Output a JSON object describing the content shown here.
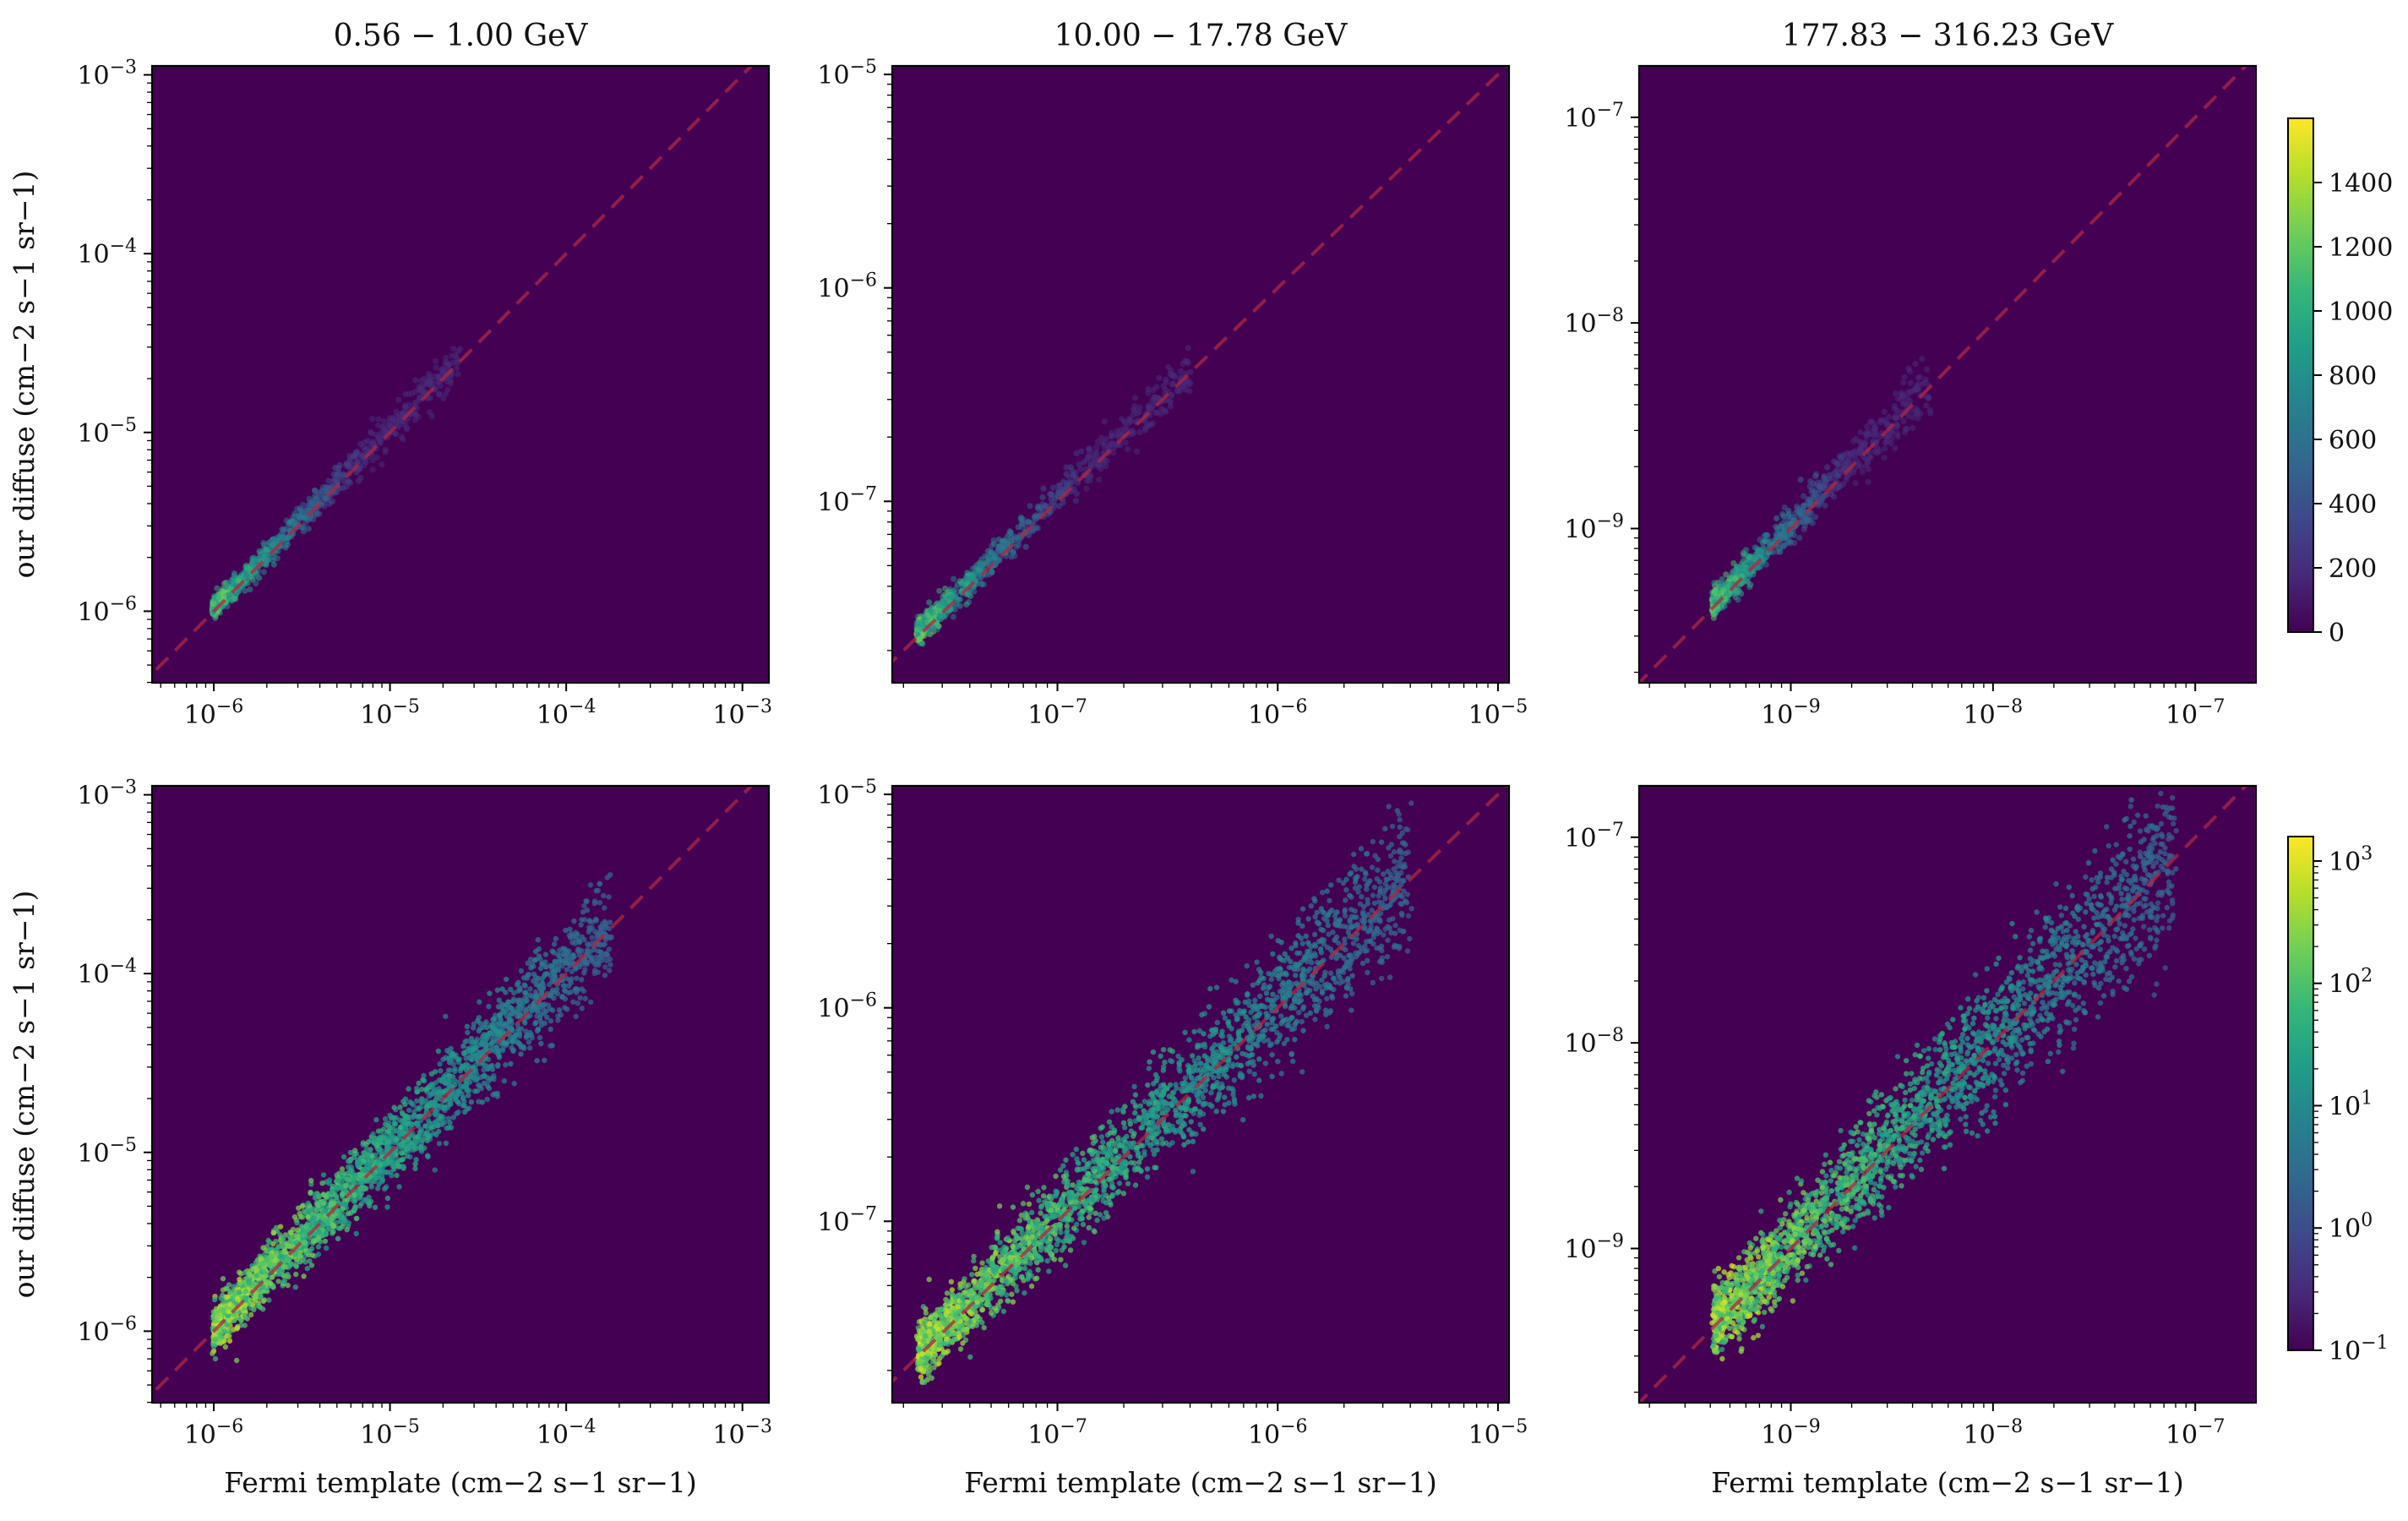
{
  "colors": {
    "background": "#440154",
    "diagonal": "#b0273f"
  },
  "viridis": [
    "#440154",
    "#482878",
    "#3e4989",
    "#31688e",
    "#26828e",
    "#1f9e89",
    "#35b779",
    "#6ece58",
    "#b5de2b",
    "#fde725"
  ],
  "chart_data": [
    {
      "type": "heatmap",
      "row": 0,
      "col": 0,
      "title": "0.56 − 1.00 GeV",
      "xlabel": "",
      "ylabel": "our diffuse (cm−2 s−1 sr−1)",
      "xlim_log10": [
        -6.35,
        -2.85
      ],
      "ylim_log10": [
        -6.4,
        -2.95
      ],
      "xticks": [
        {
          "v": -6,
          "label": "10−6"
        },
        {
          "v": -5,
          "label": "10−5"
        },
        {
          "v": -4,
          "label": "10−4"
        },
        {
          "v": -3,
          "label": "10−3"
        }
      ],
      "yticks": [
        {
          "v": -6,
          "label": "10−6"
        },
        {
          "v": -5,
          "label": "10−5"
        },
        {
          "v": -4,
          "label": "10−4"
        },
        {
          "v": -3,
          "label": "10−3"
        }
      ],
      "scale": "linear",
      "ridge_start_log10": -6.0,
      "ridge_end_log10": -4.6,
      "spread": 0.06
    },
    {
      "type": "heatmap",
      "row": 0,
      "col": 1,
      "title": "10.00 − 17.78 GeV",
      "xlabel": "",
      "ylabel": "",
      "xlim_log10": [
        -7.75,
        -4.95
      ],
      "ylim_log10": [
        -7.85,
        -4.96
      ],
      "xticks": [
        {
          "v": -7,
          "label": "10−7"
        },
        {
          "v": -6,
          "label": "10−6"
        },
        {
          "v": -5,
          "label": "10−5"
        }
      ],
      "yticks": [
        {
          "v": -7,
          "label": "10−7"
        },
        {
          "v": -6,
          "label": "10−6"
        },
        {
          "v": -5,
          "label": "10−5"
        }
      ],
      "scale": "linear",
      "ridge_start_log10": -7.63,
      "ridge_end_log10": -6.4,
      "spread": 0.06
    },
    {
      "type": "heatmap",
      "row": 0,
      "col": 2,
      "title": "177.83 − 316.23 GeV",
      "xlabel": "",
      "ylabel": "",
      "xlim_log10": [
        -9.75,
        -6.7
      ],
      "ylim_log10": [
        -9.75,
        -6.75
      ],
      "xticks": [
        {
          "v": -9,
          "label": "10−9"
        },
        {
          "v": -8,
          "label": "10−8"
        },
        {
          "v": -7,
          "label": "10−7"
        }
      ],
      "yticks": [
        {
          "v": -9,
          "label": "10−9"
        },
        {
          "v": -8,
          "label": "10−8"
        },
        {
          "v": -7,
          "label": "10−7"
        }
      ],
      "scale": "linear",
      "ridge_start_log10": -9.38,
      "ridge_end_log10": -8.3,
      "spread": 0.07
    },
    {
      "type": "heatmap",
      "row": 1,
      "col": 0,
      "title": "",
      "xlabel": "Fermi template (cm−2 s−1 sr−1)",
      "ylabel": "our diffuse (cm−2 s−1 sr−1)",
      "xlim_log10": [
        -6.35,
        -2.85
      ],
      "ylim_log10": [
        -6.4,
        -2.95
      ],
      "xticks": [
        {
          "v": -6,
          "label": "10−6"
        },
        {
          "v": -5,
          "label": "10−5"
        },
        {
          "v": -4,
          "label": "10−4"
        },
        {
          "v": -3,
          "label": "10−3"
        }
      ],
      "yticks": [
        {
          "v": -6,
          "label": "10−6"
        },
        {
          "v": -5,
          "label": "10−5"
        },
        {
          "v": -4,
          "label": "10−4"
        },
        {
          "v": -3,
          "label": "10−3"
        }
      ],
      "scale": "log",
      "ridge_start_log10": -6.0,
      "ridge_end_log10": -3.75,
      "spread": 0.1
    },
    {
      "type": "heatmap",
      "row": 1,
      "col": 1,
      "title": "",
      "xlabel": "Fermi template (cm−2 s−1 sr−1)",
      "ylabel": "",
      "xlim_log10": [
        -7.75,
        -4.95
      ],
      "ylim_log10": [
        -7.85,
        -4.96
      ],
      "xticks": [
        {
          "v": -7,
          "label": "10−7"
        },
        {
          "v": -6,
          "label": "10−6"
        },
        {
          "v": -5,
          "label": "10−5"
        }
      ],
      "yticks": [
        {
          "v": -7,
          "label": "10−7"
        },
        {
          "v": -6,
          "label": "10−6"
        },
        {
          "v": -5,
          "label": "10−5"
        }
      ],
      "scale": "log",
      "ridge_start_log10": -7.63,
      "ridge_end_log10": -5.4,
      "spread": 0.11
    },
    {
      "type": "heatmap",
      "row": 1,
      "col": 2,
      "title": "",
      "xlabel": "Fermi template (cm−2 s−1 sr−1)",
      "ylabel": "",
      "xlim_log10": [
        -9.75,
        -6.7
      ],
      "ylim_log10": [
        -9.75,
        -6.75
      ],
      "xticks": [
        {
          "v": -9,
          "label": "10−9"
        },
        {
          "v": -8,
          "label": "10−8"
        },
        {
          "v": -7,
          "label": "10−7"
        }
      ],
      "yticks": [
        {
          "v": -9,
          "label": "10−9"
        },
        {
          "v": -8,
          "label": "10−8"
        },
        {
          "v": -7,
          "label": "10−7"
        }
      ],
      "scale": "log",
      "ridge_start_log10": -9.38,
      "ridge_end_log10": -7.1,
      "spread": 0.14
    }
  ],
  "colorbars": [
    {
      "name": "counts-linear",
      "scale": "linear",
      "min": 0,
      "max": 1600,
      "ticks": [
        {
          "v": 0,
          "label": "0"
        },
        {
          "v": 200,
          "label": "200"
        },
        {
          "v": 400,
          "label": "400"
        },
        {
          "v": 600,
          "label": "600"
        },
        {
          "v": 800,
          "label": "800"
        },
        {
          "v": 1000,
          "label": "1000"
        },
        {
          "v": 1200,
          "label": "1200"
        },
        {
          "v": 1400,
          "label": "1400"
        }
      ]
    },
    {
      "name": "counts-log",
      "scale": "log",
      "min_log10": -1,
      "max_log10": 3.2,
      "ticks": [
        {
          "v": -1,
          "label": "10−1"
        },
        {
          "v": 0,
          "label": "100"
        },
        {
          "v": 1,
          "label": "101"
        },
        {
          "v": 2,
          "label": "102"
        },
        {
          "v": 3,
          "label": "103"
        }
      ]
    }
  ]
}
